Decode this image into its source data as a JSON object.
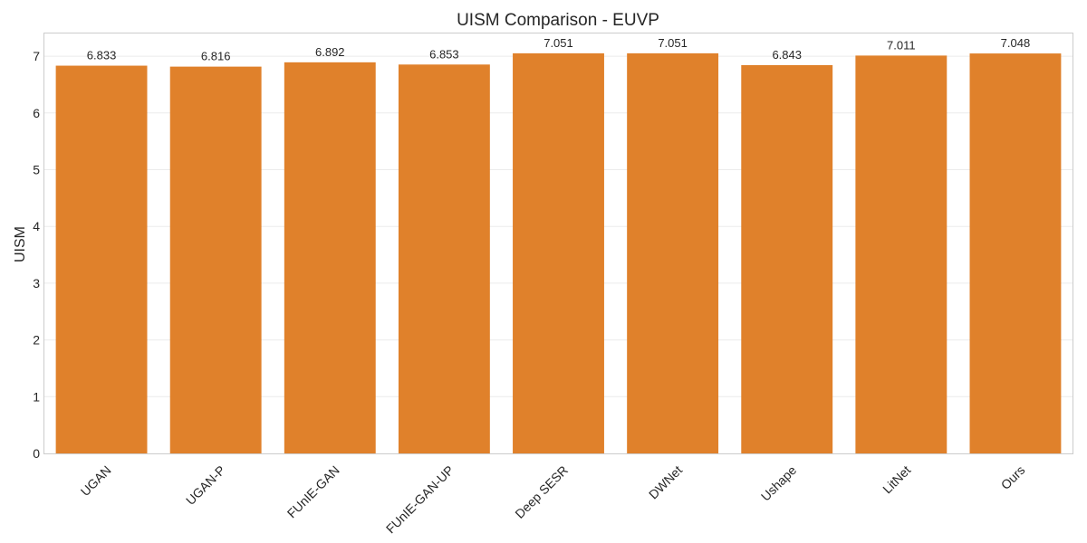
{
  "chart_data": {
    "type": "bar",
    "title": "UISM Comparison - EUVP",
    "xlabel": "",
    "ylabel": "UISM",
    "categories": [
      "UGAN",
      "UGAN-P",
      "FUnIE-GAN",
      "FUnIE-GAN-UP",
      "Deep SESR",
      "DWNet",
      "Ushape",
      "LitNet",
      "Ours"
    ],
    "values": [
      6.833,
      6.816,
      6.892,
      6.853,
      7.051,
      7.051,
      6.843,
      7.011,
      7.048
    ],
    "value_labels": [
      "6.833",
      "6.816",
      "6.892",
      "6.853",
      "7.051",
      "7.051",
      "6.843",
      "7.011",
      "7.048"
    ],
    "yticks": [
      0,
      1,
      2,
      3,
      4,
      5,
      6,
      7
    ],
    "ylim": [
      0,
      7.4
    ],
    "grid": true,
    "bar_color": "#e0812b"
  }
}
